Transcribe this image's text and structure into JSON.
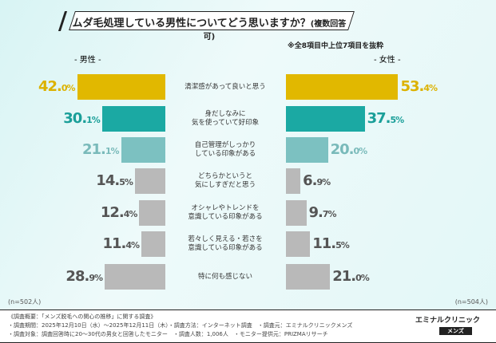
{
  "title": "ムダ毛処理している男性についてどう思いますか？",
  "title_suffix": "(複数回答可)",
  "note": "※全8項目中上位7項目を抜粋",
  "chart_data": {
    "type": "bar",
    "orientation": "horizontal-butterfly",
    "categories": [
      "清潔感があって良いと思う",
      "身だしなみに\n気を使っていて好印象",
      "自己管理がしっかり\nしている印象がある",
      "どちらかというと\n気にしすぎだと思う",
      "オシャレやトレンドを\n意識している印象がある",
      "若々しく見える・若さを\n意識している印象がある",
      "特に何も感じない"
    ],
    "series": [
      {
        "name": "- 男性 -",
        "values": [
          42.0,
          30.1,
          21.1,
          14.5,
          12.4,
          11.4,
          28.9
        ],
        "n_label": "(n=502人)",
        "color": "#7a5cc0"
      },
      {
        "name": "- 女性 -",
        "values": [
          53.4,
          37.5,
          20.0,
          6.9,
          9.7,
          11.5,
          21.0
        ],
        "n_label": "(n=504人)",
        "color": "#d0509a"
      }
    ],
    "bar_colors": [
      "#e1b800",
      "#1ba9a3",
      "#7cc1c1",
      "#b9b9b9",
      "#b9b9b9",
      "#b9b9b9",
      "#b9b9b9"
    ],
    "label_colors": [
      "#dcb200",
      "#1a9f99",
      "#79baba",
      "#555555",
      "#555555",
      "#555555",
      "#555555"
    ],
    "unit": "%"
  },
  "footer": {
    "lines": [
      "《調査概要：「メンズ脱毛への関心の推移」に関する調査》",
      "・調査期間：2025年12月10日（水）～2025年12月11日（木）・調査方法：インターネット調査　・調査元：エミナルクリニックメンズ",
      "・調査対象：調査回答時に20～30代の男女と回答したモニター　・調査人数：1,006人　・モニター提供元：PRIZMAリサーチ"
    ],
    "logo": "エミナルクリニック",
    "logo_sub": "メンズ"
  }
}
